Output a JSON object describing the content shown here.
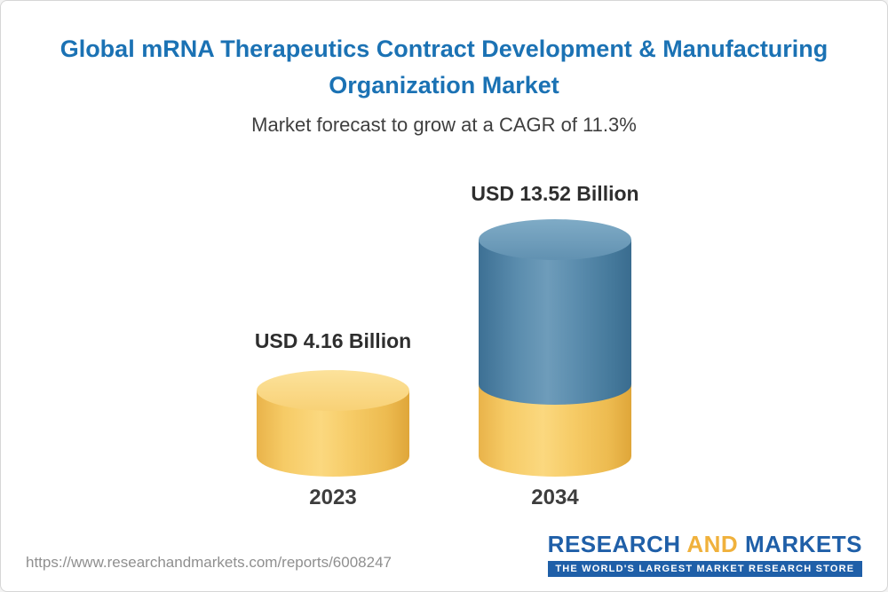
{
  "header": {
    "title": "Global mRNA Therapeutics Contract Development & Manufacturing Organization Market",
    "subtitle": "Market forecast to grow at a CAGR of 11.3%"
  },
  "chart_data": {
    "type": "bar",
    "title": "Global mRNA Therapeutics Contract Development & Manufacturing Organization Market",
    "subtitle": "Market forecast to grow at a CAGR of 11.3%",
    "categories": [
      "2023",
      "2034"
    ],
    "values": [
      4.16,
      13.52
    ],
    "value_labels": [
      "USD 4.16 Billion",
      "USD 13.52 Billion"
    ],
    "unit": "USD Billion",
    "cagr_pct": 11.3,
    "ylim": [
      0,
      14
    ],
    "legend": "none",
    "grid": "off",
    "bar_style": "3d-cylinder",
    "bar_colors": {
      "2023": "#f6cb66",
      "2034_top_segment": "#5a8cad",
      "2034_base_segment": "#f6cb66"
    }
  },
  "footer": {
    "url": "https://www.researchandmarkets.com/reports/6008247",
    "logo": {
      "research": "RESEARCH",
      "and": "AND",
      "markets": "MARKETS",
      "tagline": "THE WORLD'S LARGEST MARKET RESEARCH STORE"
    }
  }
}
